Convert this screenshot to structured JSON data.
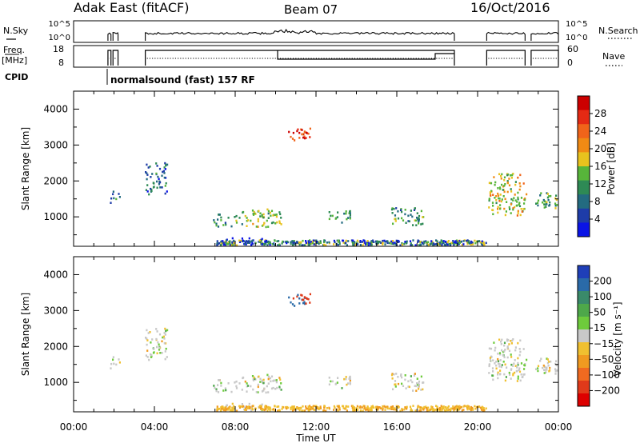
{
  "header": {
    "station": "Adak East (fitACF)",
    "beam": "Beam 07",
    "date": "16/Oct/2016"
  },
  "status_panel": {
    "nsky_label": "N.Sky",
    "nsky_ticks": [
      "10^5",
      "10^0"
    ],
    "nsearch_label": "N.Search",
    "nsearch_ticks": [
      "10^5",
      "10^0"
    ],
    "freq_label_1": "Freq.",
    "freq_label_2": "[MHz]",
    "freq_ticks": [
      "18",
      "8"
    ],
    "nave_label": "Nave",
    "nave_ticks": [
      "60",
      "0"
    ],
    "cpid_label": "CPID",
    "cpid_text": "normalsound (fast) 157 RF",
    "data_segments_ut": [
      [
        1.7,
        1.85
      ],
      [
        1.95,
        2.2
      ],
      [
        3.55,
        18.85
      ],
      [
        20.45,
        22.35
      ],
      [
        22.65,
        24.0
      ]
    ]
  },
  "chart_data": [
    {
      "type": "heatmap",
      "name": "power",
      "ylabel": "Slant Range [km]",
      "xlabel": "Time UT",
      "xlim": [
        0,
        24
      ],
      "ylim": [
        180,
        4500
      ],
      "yticks": [
        "1000",
        "2000",
        "3000",
        "4000"
      ],
      "colorbar_label": "Power [dB]",
      "colorbar_ticks": [
        "4",
        "8",
        "12",
        "16",
        "20",
        "24",
        "28"
      ],
      "colorscale": [
        "#0a14e6",
        "#1e3ca8",
        "#236b80",
        "#2e8a55",
        "#57b53a",
        "#e8c21e",
        "#f08a14",
        "#f0641a",
        "#e42a14",
        "#cc0000"
      ],
      "echo_regions": [
        {
          "t": [
            1.75,
            2.25
          ],
          "r": [
            1350,
            1700
          ],
          "level": 0.3
        },
        {
          "t": [
            3.5,
            4.6
          ],
          "r": [
            1600,
            2500
          ],
          "level": 0.25
        },
        {
          "t": [
            6.9,
            8.3
          ],
          "r": [
            700,
            1050
          ],
          "level": 0.35
        },
        {
          "t": [
            8.3,
            10.3
          ],
          "r": [
            700,
            1200
          ],
          "level": 0.45
        },
        {
          "t": [
            10.6,
            11.7
          ],
          "r": [
            3100,
            3500
          ],
          "level": 0.85
        },
        {
          "t": [
            12.6,
            13.7
          ],
          "r": [
            800,
            1150
          ],
          "level": 0.35
        },
        {
          "t": [
            15.7,
            17.3
          ],
          "r": [
            750,
            1250
          ],
          "level": 0.35
        },
        {
          "t": [
            7.4,
            9.4
          ],
          "r": [
            200,
            400
          ],
          "level": 0.15
        },
        {
          "t": [
            20.5,
            22.4
          ],
          "r": [
            1000,
            2200
          ],
          "level": 0.55
        },
        {
          "t": [
            22.8,
            24.0
          ],
          "r": [
            1200,
            1700
          ],
          "level": 0.4
        }
      ]
    },
    {
      "type": "heatmap",
      "name": "velocity",
      "ylabel": "Slant Range [km]",
      "xlabel": "Time UT",
      "xlim": [
        0,
        24
      ],
      "ylim": [
        180,
        4500
      ],
      "yticks": [
        "1000",
        "2000",
        "3000",
        "4000"
      ],
      "xticks": [
        "00:00",
        "04:00",
        "08:00",
        "12:00",
        "16:00",
        "20:00",
        "00:00"
      ],
      "colorbar_label": "Velocity [m s⁻¹]",
      "colorbar_ticks": [
        "200",
        "100",
        "50",
        "15",
        "−15",
        "−50",
        "−100",
        "−200"
      ],
      "colorscale": [
        "#1f3fb8",
        "#2a6aa8",
        "#3a8a6a",
        "#4ea84a",
        "#6ecb3c",
        "#c8c8c8",
        "#f0c030",
        "#f09a20",
        "#f06a20",
        "#e03a1a",
        "#dd0000"
      ]
    }
  ]
}
